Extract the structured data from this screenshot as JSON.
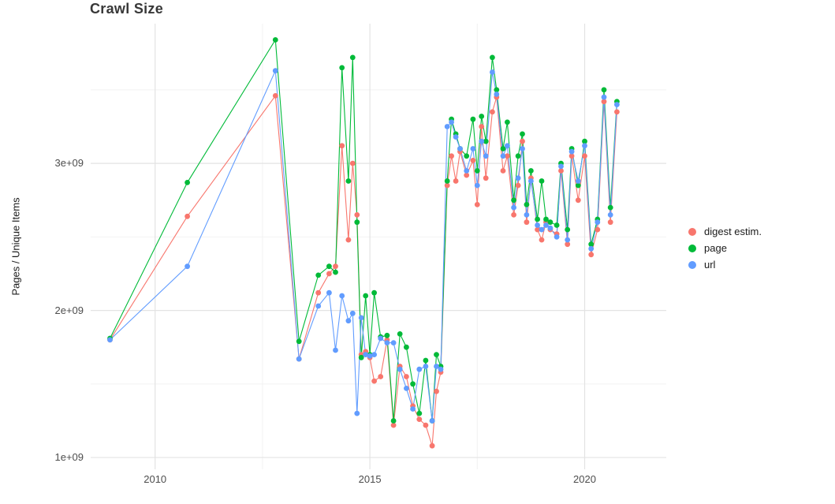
{
  "chart_data": {
    "type": "line",
    "title": "Crawl Size",
    "xlabel": "",
    "ylabel": "Pages / Unique Items",
    "y_unit": "1e9 (values in billions)",
    "xlim": [
      2008.5,
      2021.9
    ],
    "ylim": [
      0.92,
      3.95
    ],
    "xticks": [
      2010,
      2015,
      2020
    ],
    "xtick_labels": [
      "2010",
      "2015",
      "2020"
    ],
    "yticks": [
      1,
      2,
      3
    ],
    "ytick_labels": [
      "1e+09",
      "2e+09",
      "3e+09"
    ],
    "x_minor": [
      2012.5,
      2017.5
    ],
    "y_minor": [
      1.5,
      2.5,
      3.5
    ],
    "grid": true,
    "legend_position": "right",
    "x": [
      2008.95,
      2010.75,
      2012.8,
      2013.35,
      2013.8,
      2014.05,
      2014.2,
      2014.35,
      2014.5,
      2014.6,
      2014.7,
      2014.8,
      2014.9,
      2015.0,
      2015.1,
      2015.25,
      2015.4,
      2015.55,
      2015.7,
      2015.85,
      2016.0,
      2016.15,
      2016.3,
      2016.45,
      2016.55,
      2016.65,
      2016.8,
      2016.9,
      2017.0,
      2017.1,
      2017.25,
      2017.4,
      2017.5,
      2017.6,
      2017.7,
      2017.85,
      2017.95,
      2018.1,
      2018.2,
      2018.35,
      2018.45,
      2018.55,
      2018.65,
      2018.75,
      2018.9,
      2019.0,
      2019.1,
      2019.2,
      2019.35,
      2019.45,
      2019.6,
      2019.7,
      2019.85,
      2020.0,
      2020.15,
      2020.3,
      2020.45,
      2020.6,
      2020.75
    ],
    "series": [
      {
        "id": "digest",
        "name": "digest estim.",
        "color": "#F8766D",
        "values": [
          1.8,
          2.64,
          3.46,
          1.67,
          2.12,
          2.25,
          2.3,
          3.12,
          2.48,
          3.0,
          2.65,
          1.7,
          1.72,
          1.68,
          1.52,
          1.55,
          1.8,
          1.22,
          1.62,
          1.55,
          1.35,
          1.26,
          1.22,
          1.08,
          1.45,
          1.58,
          2.85,
          3.05,
          2.88,
          3.08,
          2.92,
          3.02,
          2.72,
          3.25,
          2.9,
          3.35,
          3.45,
          2.95,
          3.05,
          2.65,
          2.85,
          3.15,
          2.6,
          2.9,
          2.55,
          2.48,
          2.6,
          2.55,
          2.52,
          2.95,
          2.45,
          3.05,
          2.75,
          3.05,
          2.38,
          2.55,
          3.42,
          2.6,
          3.35
        ]
      },
      {
        "id": "page",
        "name": "page",
        "color": "#00BA38",
        "values": [
          1.81,
          2.87,
          3.84,
          1.79,
          2.24,
          2.3,
          2.26,
          3.65,
          2.88,
          3.72,
          2.6,
          1.68,
          2.1,
          1.7,
          2.12,
          1.82,
          1.83,
          1.25,
          1.84,
          1.75,
          1.5,
          1.3,
          1.66,
          1.25,
          1.7,
          1.62,
          2.88,
          3.3,
          3.2,
          3.1,
          3.05,
          3.3,
          2.95,
          3.32,
          3.15,
          3.72,
          3.5,
          3.1,
          3.28,
          2.75,
          3.05,
          3.2,
          2.72,
          2.95,
          2.62,
          2.88,
          2.62,
          2.6,
          2.58,
          3.0,
          2.55,
          3.1,
          2.85,
          3.15,
          2.45,
          2.62,
          3.5,
          2.7,
          3.42
        ]
      },
      {
        "id": "url",
        "name": "url",
        "color": "#619CFF",
        "values": [
          1.8,
          2.3,
          3.63,
          1.67,
          2.03,
          2.12,
          1.73,
          2.1,
          1.93,
          1.98,
          1.3,
          1.95,
          1.7,
          1.69,
          1.7,
          1.81,
          1.78,
          1.78,
          1.6,
          1.47,
          1.33,
          1.6,
          1.62,
          1.25,
          1.62,
          1.6,
          3.25,
          3.28,
          3.18,
          3.1,
          2.95,
          3.1,
          2.85,
          3.15,
          3.05,
          3.62,
          3.47,
          3.05,
          3.12,
          2.7,
          2.9,
          3.1,
          2.65,
          2.88,
          2.58,
          2.55,
          2.58,
          2.56,
          2.5,
          2.98,
          2.48,
          3.08,
          2.88,
          3.12,
          2.42,
          2.6,
          3.45,
          2.65,
          3.4
        ]
      }
    ]
  }
}
